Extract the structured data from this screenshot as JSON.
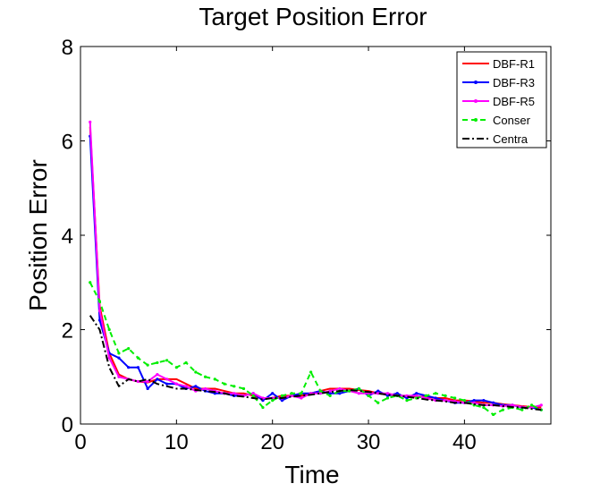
{
  "chart_data": {
    "type": "line",
    "title": "Target Position Error",
    "xlabel": "Time",
    "ylabel": "Position Error",
    "xlim": [
      0,
      49
    ],
    "ylim": [
      0,
      8
    ],
    "xticks": [
      0,
      10,
      20,
      30,
      40
    ],
    "yticks": [
      0,
      2,
      4,
      6,
      8
    ],
    "grid": false,
    "legend_position": "top-right",
    "x": [
      1,
      2,
      3,
      4,
      5,
      6,
      7,
      8,
      9,
      10,
      11,
      12,
      13,
      14,
      15,
      16,
      17,
      18,
      19,
      20,
      21,
      22,
      23,
      24,
      25,
      26,
      27,
      28,
      29,
      30,
      31,
      32,
      33,
      34,
      35,
      36,
      37,
      38,
      39,
      40,
      41,
      42,
      43,
      44,
      45,
      46,
      47,
      48
    ],
    "series": [
      {
        "name": "DBF-R1",
        "color": "#ff0000",
        "dash": "",
        "marker": "none",
        "values": [
          6.3,
          2.5,
          1.5,
          1.05,
          0.95,
          0.9,
          0.88,
          0.95,
          0.95,
          0.95,
          0.85,
          0.75,
          0.75,
          0.75,
          0.7,
          0.65,
          0.65,
          0.6,
          0.55,
          0.55,
          0.6,
          0.6,
          0.6,
          0.65,
          0.7,
          0.75,
          0.75,
          0.75,
          0.72,
          0.7,
          0.65,
          0.62,
          0.6,
          0.6,
          0.58,
          0.58,
          0.55,
          0.55,
          0.5,
          0.5,
          0.48,
          0.45,
          0.45,
          0.42,
          0.4,
          0.38,
          0.36,
          0.35
        ]
      },
      {
        "name": "DBF-R3",
        "color": "#0000ff",
        "dash": "",
        "marker": "dot",
        "values": [
          6.1,
          2.2,
          1.5,
          1.4,
          1.2,
          1.2,
          0.75,
          0.95,
          0.85,
          0.85,
          0.75,
          0.8,
          0.7,
          0.65,
          0.65,
          0.6,
          0.6,
          0.65,
          0.5,
          0.65,
          0.5,
          0.6,
          0.65,
          0.65,
          0.7,
          0.65,
          0.65,
          0.7,
          0.75,
          0.6,
          0.7,
          0.6,
          0.65,
          0.55,
          0.65,
          0.6,
          0.55,
          0.5,
          0.45,
          0.45,
          0.5,
          0.5,
          0.45,
          0.4,
          0.4,
          0.35,
          0.35,
          0.3
        ]
      },
      {
        "name": "DBF-R5",
        "color": "#ff00ff",
        "dash": "",
        "marker": "dot",
        "values": [
          6.4,
          2.4,
          1.4,
          1.0,
          0.95,
          0.9,
          0.9,
          1.05,
          0.95,
          0.85,
          0.8,
          0.7,
          0.75,
          0.7,
          0.65,
          0.65,
          0.6,
          0.65,
          0.55,
          0.55,
          0.55,
          0.6,
          0.55,
          0.65,
          0.65,
          0.7,
          0.75,
          0.7,
          0.65,
          0.65,
          0.65,
          0.65,
          0.6,
          0.6,
          0.6,
          0.55,
          0.5,
          0.5,
          0.48,
          0.45,
          0.45,
          0.4,
          0.4,
          0.38,
          0.4,
          0.36,
          0.35,
          0.4
        ]
      },
      {
        "name": "Conser",
        "color": "#00ee00",
        "dash": "6,4",
        "marker": "dot",
        "values": [
          3.0,
          2.6,
          2.0,
          1.5,
          1.6,
          1.4,
          1.25,
          1.3,
          1.35,
          1.2,
          1.3,
          1.1,
          1.0,
          0.95,
          0.85,
          0.8,
          0.75,
          0.6,
          0.35,
          0.5,
          0.6,
          0.65,
          0.65,
          1.1,
          0.7,
          0.6,
          0.7,
          0.7,
          0.75,
          0.6,
          0.45,
          0.55,
          0.6,
          0.5,
          0.55,
          0.6,
          0.65,
          0.6,
          0.55,
          0.5,
          0.4,
          0.35,
          0.2,
          0.3,
          0.35,
          0.3,
          0.4,
          0.3
        ]
      },
      {
        "name": "Centra",
        "color": "#000000",
        "dash": "8,3,2,3",
        "marker": "none",
        "values": [
          2.3,
          2.0,
          1.2,
          0.8,
          0.95,
          0.9,
          0.95,
          0.85,
          0.8,
          0.75,
          0.75,
          0.72,
          0.7,
          0.68,
          0.65,
          0.6,
          0.58,
          0.55,
          0.52,
          0.55,
          0.55,
          0.58,
          0.6,
          0.62,
          0.65,
          0.68,
          0.7,
          0.72,
          0.7,
          0.68,
          0.65,
          0.62,
          0.6,
          0.58,
          0.55,
          0.52,
          0.5,
          0.48,
          0.45,
          0.45,
          0.42,
          0.4,
          0.4,
          0.38,
          0.36,
          0.35,
          0.32,
          0.3
        ]
      }
    ]
  }
}
